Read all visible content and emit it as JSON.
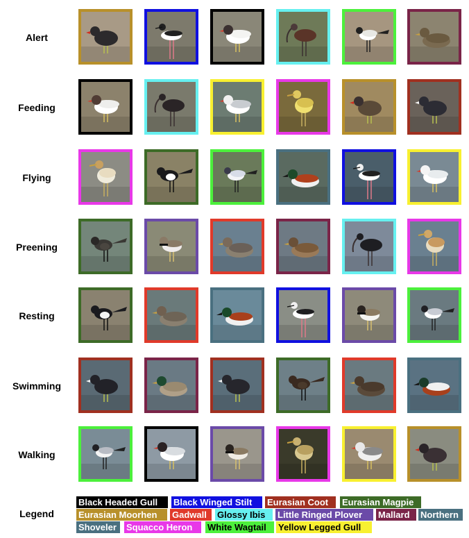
{
  "species": {
    "black_headed_gull": {
      "label": "Black Headed Gull",
      "color": "#000000",
      "text": "#ffffff",
      "bird": "gull"
    },
    "black_winged_stilt": {
      "label": "Black Winged Stilt",
      "color": "#1010e0",
      "text": "#ffffff",
      "bird": "stilt"
    },
    "eurasian_coot": {
      "label": "Eurasian Coot",
      "color": "#a03020",
      "text": "#ffffff",
      "bird": "coot"
    },
    "eurasian_magpie": {
      "label": "Eurasian Magpie",
      "color": "#3d6b27",
      "text": "#ffffff",
      "bird": "magpie"
    },
    "eurasian_moorhen": {
      "label": "Eurasian Moorhen",
      "color": "#b8902a",
      "text": "#ffffff",
      "bird": "moorhen"
    },
    "gadwall": {
      "label": "Gadwall",
      "color": "#e03a2a",
      "text": "#ffffff",
      "bird": "duck"
    },
    "glossy_ibis": {
      "label": "Glossy Ibis",
      "color": "#66f0f0",
      "text": "#000000",
      "bird": "ibis"
    },
    "little_ringed_plover": {
      "label": "Little Ringed Plover",
      "color": "#6b4aa8",
      "text": "#ffffff",
      "bird": "plover"
    },
    "mallard": {
      "label": "Mallard",
      "color": "#7a2448",
      "text": "#ffffff",
      "bird": "duck"
    },
    "northern_shoveler": {
      "label_1": "Northern",
      "label_2": "Shoveler",
      "color": "#4a7080",
      "text": "#ffffff",
      "bird": "shoveler"
    },
    "squacco_heron": {
      "label": "Squacco Heron",
      "color": "#e838e8",
      "text": "#ffffff",
      "bird": "heron"
    },
    "white_wagtail": {
      "label": "White Wagtail",
      "color": "#4cf03c",
      "text": "#000000",
      "bird": "wagtail"
    },
    "yellow_legged_gull": {
      "label": "Yellow Legged Gull",
      "color": "#f8f030",
      "text": "#000000",
      "bird": "gull"
    }
  },
  "rows": [
    {
      "label": "Alert",
      "tiles": [
        {
          "species": "eurasian_moorhen",
          "bg": "#a89a86",
          "body": "#2c2a2c",
          "head": "#2c2a2c",
          "belly": "#2c2a2c"
        },
        {
          "species": "black_winged_stilt",
          "bg": "#7d7a6c",
          "body": "#f2f2f0",
          "head": "#202020",
          "belly": "#ffffff"
        },
        {
          "species": "black_headed_gull",
          "bg": "#8a8778",
          "body": "#f4f4f2",
          "head": "#3a3030",
          "belly": "#ffffff"
        },
        {
          "species": "glossy_ibis",
          "bg": "#6e7a58",
          "body": "#5a3428",
          "head": "#4c3a3a",
          "belly": "#5a3428"
        },
        {
          "species": "white_wagtail",
          "bg": "#a69680",
          "body": "#e8e8e4",
          "head": "#202020",
          "belly": "#ffffff"
        },
        {
          "species": "mallard",
          "bg": "#8c8470",
          "body": "#6a5a40",
          "head": "#6a5a40",
          "belly": "#7a6a50"
        }
      ]
    },
    {
      "label": "Feeding",
      "tiles": [
        {
          "species": "black_headed_gull",
          "bg": "#8c826c",
          "body": "#eeeeec",
          "head": "#503c34",
          "belly": "#ffffff"
        },
        {
          "species": "glossy_ibis",
          "bg": "#7a7a6c",
          "body": "#2a2426",
          "head": "#2a2426",
          "belly": "#2a2426"
        },
        {
          "species": "yellow_legged_gull",
          "bg": "#6c7c72",
          "body": "#c8ccd0",
          "head": "#f0f0f0",
          "belly": "#ffffff"
        },
        {
          "species": "squacco_heron",
          "bg": "#7a6a3c",
          "body": "#d8c050",
          "head": "#e0c860",
          "belly": "#f0e070"
        },
        {
          "species": "eurasian_moorhen",
          "bg": "#a08a60",
          "body": "#5a4a38",
          "head": "#3a3030",
          "belly": "#6a5a48"
        },
        {
          "species": "eurasian_coot",
          "bg": "#6a625a",
          "body": "#2c2c34",
          "head": "#2c2c34",
          "belly": "#3a3a42"
        }
      ]
    },
    {
      "label": "Flying",
      "tiles": [
        {
          "species": "squacco_heron",
          "bg": "#8c8c84",
          "body": "#e8dcc0",
          "head": "#c8a060",
          "belly": "#f0ecdc"
        },
        {
          "species": "eurasian_magpie",
          "bg": "#8a8266",
          "body": "#1a1a1c",
          "head": "#1a1a1c",
          "belly": "#ffffff"
        },
        {
          "species": "white_wagtail",
          "bg": "#6a7a5a",
          "body": "#d8dce8",
          "head": "#3a3a4a",
          "belly": "#f4f4f8"
        },
        {
          "species": "northern_shoveler",
          "bg": "#5a6a60",
          "body": "#b0401c",
          "head": "#1e4a2a",
          "belly": "#f0f0f0"
        },
        {
          "species": "black_winged_stilt",
          "bg": "#4a5e6a",
          "body": "#202020",
          "head": "#f0f0f0",
          "belly": "#ffffff"
        },
        {
          "species": "yellow_legged_gull",
          "bg": "#7a8a94",
          "body": "#e8ecee",
          "head": "#f4f4f4",
          "belly": "#ffffff"
        }
      ]
    },
    {
      "label": "Preening",
      "tiles": [
        {
          "species": "eurasian_magpie",
          "bg": "#74867a",
          "body": "#3a3834",
          "head": "#2a2826",
          "belly": "#4a4640"
        },
        {
          "species": "little_ringed_plover",
          "bg": "#8a8a76",
          "body": "#8a7a66",
          "head": "#8a7a66",
          "belly": "#f0ecec"
        },
        {
          "species": "gadwall",
          "bg": "#6a8090",
          "body": "#6a6058",
          "head": "#7a6a5a",
          "belly": "#8a8070"
        },
        {
          "species": "mallard",
          "bg": "#6e7a84",
          "body": "#7a5a3a",
          "head": "#6a5038",
          "belly": "#9a7a58"
        },
        {
          "species": "glossy_ibis",
          "bg": "#7e8a9a",
          "body": "#1e1e22",
          "head": "#1e1e22",
          "belly": "#2a2a2e"
        },
        {
          "species": "squacco_heron",
          "bg": "#6a8090",
          "body": "#c89a60",
          "head": "#d0a868",
          "belly": "#e8dcc0"
        }
      ]
    },
    {
      "label": "Resting",
      "tiles": [
        {
          "species": "eurasian_magpie",
          "bg": "#8a8270",
          "body": "#1a1a1e",
          "head": "#1a1a1e",
          "belly": "#f4f4f4"
        },
        {
          "species": "gadwall",
          "bg": "#6a7a7a",
          "body": "#6e6456",
          "head": "#706050",
          "belly": "#8a8070"
        },
        {
          "species": "northern_shoveler",
          "bg": "#6a8a9a",
          "body": "#a8401c",
          "head": "#1a4a2a",
          "belly": "#f0f0f0"
        },
        {
          "species": "black_winged_stilt",
          "bg": "#8a8e86",
          "body": "#1e1e20",
          "head": "#f0f0f0",
          "belly": "#ffffff"
        },
        {
          "species": "little_ringed_plover",
          "bg": "#8e8a7a",
          "body": "#8a7a60",
          "head": "#2a2420",
          "belly": "#f4f4f0"
        },
        {
          "species": "white_wagtail",
          "bg": "#6a7a80",
          "body": "#c8ccd4",
          "head": "#202024",
          "belly": "#ffffff"
        }
      ]
    },
    {
      "label": "Swimming",
      "tiles": [
        {
          "species": "eurasian_coot",
          "bg": "#5a6a74",
          "body": "#222228",
          "head": "#222228",
          "belly": "#2c2c32"
        },
        {
          "species": "mallard",
          "bg": "#6a7a84",
          "body": "#9a8a70",
          "head": "#1e4a30",
          "belly": "#b0a088"
        },
        {
          "species": "eurasian_coot",
          "bg": "#5a6e7a",
          "body": "#26262c",
          "head": "#26262c",
          "belly": "#30303a"
        },
        {
          "species": "eurasian_magpie",
          "bg": "#6e8088",
          "body": "#3a2a20",
          "head": "#3a2a20",
          "belly": "#4a3a2c"
        },
        {
          "species": "gadwall",
          "bg": "#6a7a80",
          "body": "#4a3a2c",
          "head": "#4a3a2c",
          "belly": "#5a4a3a"
        },
        {
          "species": "northern_shoveler",
          "bg": "#5a7282",
          "body": "#f0f0f0",
          "head": "#1a3c2a",
          "belly": "#a8401c"
        }
      ]
    },
    {
      "label": "Walking",
      "tiles": [
        {
          "species": "white_wagtail",
          "bg": "#7a8c96",
          "body": "#b8bcc4",
          "head": "#202024",
          "belly": "#f4f4f4"
        },
        {
          "species": "black_headed_gull",
          "bg": "#8e9aa4",
          "body": "#d8dce0",
          "head": "#2a2224",
          "belly": "#ffffff"
        },
        {
          "species": "little_ringed_plover",
          "bg": "#9a968c",
          "body": "#8a7a62",
          "head": "#2a2420",
          "belly": "#f0ece4"
        },
        {
          "species": "squacco_heron",
          "bg": "#3a3a2a",
          "body": "#b8a060",
          "head": "#c8b070",
          "belly": "#d8c890"
        },
        {
          "species": "yellow_legged_gull",
          "bg": "#9a8a70",
          "body": "#8a8a8a",
          "head": "#e8e8e8",
          "belly": "#f0f0f0"
        },
        {
          "species": "eurasian_moorhen",
          "bg": "#8a8c80",
          "body": "#3a3034",
          "head": "#2a2428",
          "belly": "#4a4044"
        }
      ]
    }
  ],
  "legend": {
    "title": "Legend",
    "lines": [
      [
        "black_headed_gull",
        "black_winged_stilt",
        "eurasian_coot",
        "eurasian_magpie"
      ],
      [
        "eurasian_moorhen",
        "gadwall",
        "glossy_ibis",
        "little_ringed_plover",
        "mallard",
        "northern_shoveler"
      ],
      [
        "northern_shoveler",
        "squacco_heron",
        "white_wagtail",
        "yellow_legged_gull"
      ]
    ]
  }
}
